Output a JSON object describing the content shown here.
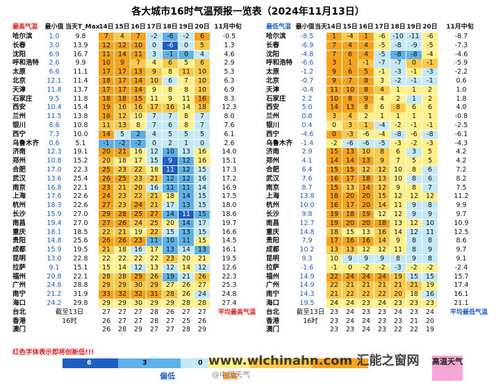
{
  "title": "各大城市16时气温预报一览表（2024年11月13日）",
  "tables": [
    {
      "header": [
        "最高气温",
        "最小值",
        "当天T_Max",
        "14日",
        "15日",
        "16日",
        "17日",
        "18日",
        "19日",
        "20日",
        "11月中旬"
      ],
      "rows": [
        {
          "city": "哈尔滨",
          "min": "1.0",
          "tmax": "9.8",
          "days": [
            7,
            4,
            7,
            -2,
            -6,
            -2,
            6
          ],
          "mid": "-0.5"
        },
        {
          "city": "长春",
          "min": "3.0",
          "tmax": "13.9",
          "days": [
            12,
            12,
            10,
            0,
            -6,
            0,
            5
          ],
          "mid": "1.3"
        },
        {
          "city": "沈阳",
          "min": "6.9",
          "tmax": "16.7",
          "days": [
            11,
            14,
            11,
            3,
            -1,
            0,
            4
          ],
          "mid": "4.6"
        },
        {
          "city": "呼和浩特",
          "min": "2.6",
          "tmax": "9.9",
          "days": [
            10,
            9,
            7,
            4,
            6,
            5,
            6
          ],
          "mid": "2.9"
        },
        {
          "city": "太原",
          "min": "6.6",
          "tmax": "11.1",
          "days": [
            17,
            17,
            13,
            9,
            8,
            11,
            10
          ],
          "mid": "5.3"
        },
        {
          "city": "北京",
          "min": "12.1",
          "tmax": "11.4",
          "days": [
            18,
            17,
            14,
            10,
            6,
            7,
            10
          ],
          "mid": "6.3"
        },
        {
          "city": "天津",
          "min": "11.8",
          "tmax": "13.7",
          "days": [
            17,
            17,
            14,
            9,
            8,
            8,
            10
          ],
          "mid": "6.9"
        },
        {
          "city": "石家庄",
          "min": "9.5",
          "tmax": "11.8",
          "days": [
            18,
            18,
            15,
            11,
            9,
            11,
            16
          ],
          "mid": "8.3"
        },
        {
          "city": "西安",
          "min": "10.4",
          "tmax": "15.4",
          "days": [
            19,
            16,
            16,
            17,
            16,
            14,
            18
          ],
          "mid": "12.3"
        },
        {
          "city": "兰州",
          "min": "11.5",
          "tmax": "13.8",
          "days": [
            16,
            12,
            10,
            7,
            7,
            8,
            7
          ],
          "mid": "8.0"
        },
        {
          "city": "银川",
          "min": "8.6",
          "tmax": "10.8",
          "days": [
            11,
            13,
            8,
            7,
            6,
            8,
            7
          ],
          "mid": "7.6"
        },
        {
          "city": "西宁",
          "min": "7.3",
          "tmax": "10.0",
          "days": [
            14,
            5,
            2,
            4,
            5,
            5,
            5
          ],
          "mid": "6.1"
        },
        {
          "city": "乌鲁木齐",
          "min": "0.6",
          "tmax": "5.1",
          "days": [
            -1,
            -2,
            -2,
            0,
            2,
            1,
            0
          ],
          "mid": "2.6"
        },
        {
          "city": "济南",
          "min": "12.3",
          "tmax": "19.1",
          "days": [
            20,
            21,
            16,
            12,
            10,
            13,
            16
          ],
          "mid": "14.0"
        },
        {
          "city": "郑州",
          "min": "10.8",
          "tmax": "15.2",
          "days": [
            20,
            18,
            17,
            15,
            9,
            12,
            16
          ],
          "mid": "15.1"
        },
        {
          "city": "合肥",
          "min": "17.0",
          "tmax": "22.3",
          "days": [
            25,
            23,
            22,
            18,
            11,
            12,
            15
          ],
          "mid": "17.3"
        },
        {
          "city": "武汉",
          "min": "13.6",
          "tmax": "25.4",
          "days": [
            26,
            25,
            23,
            21,
            12,
            12,
            16
          ],
          "mid": "17.2"
        },
        {
          "city": "南京",
          "min": "16.8",
          "tmax": "22.1",
          "days": [
            23,
            21,
            20,
            16,
            11,
            11,
            14
          ],
          "mid": "16.9"
        },
        {
          "city": "上海",
          "min": "17.6",
          "tmax": "22.6",
          "days": [
            24,
            23,
            22,
            21,
            18,
            14,
            15
          ],
          "mid": "17.5"
        },
        {
          "city": "杭州",
          "min": "18.3",
          "tmax": "22.6",
          "days": [
            27,
            23,
            24,
            21,
            17,
            13,
            15
          ],
          "mid": "18.0"
        },
        {
          "city": "长沙",
          "min": "15.9",
          "tmax": "27.0",
          "days": [
            29,
            28,
            25,
            27,
            14,
            11,
            15
          ],
          "mid": "18.6"
        },
        {
          "city": "南昌",
          "min": "19.4",
          "tmax": "27.0",
          "days": [
            27,
            26,
            24,
            25,
            20,
            14,
            17
          ],
          "mid": "19.7"
        },
        {
          "city": "重庆",
          "min": "18.1",
          "tmax": "18.5",
          "days": [
            22,
            21,
            19,
            22,
            15,
            13,
            15
          ],
          "mid": "16.6"
        },
        {
          "city": "贵阳",
          "min": "14.8",
          "tmax": "25.6",
          "days": [
            26,
            26,
            23,
            11,
            10,
            11,
            15
          ],
          "mid": "14.5"
        },
        {
          "city": "成都",
          "min": "15.9",
          "tmax": "19.5",
          "days": [
            21,
            18,
            16,
            17,
            13,
            14,
            13
          ],
          "mid": "16.1"
        },
        {
          "city": "昆明",
          "min": "13.0",
          "tmax": "22.8",
          "days": [
            22,
            22,
            22,
            22,
            23,
            20,
            21
          ],
          "mid": "19.5"
        },
        {
          "city": "拉萨",
          "min": "9.1",
          "tmax": "15.1",
          "days": [
            15,
            14,
            12,
            13,
            12,
            14,
            12
          ],
          "mid": "12.6"
        },
        {
          "city": "福州",
          "min": "20.8",
          "tmax": "22.1",
          "days": [
            28,
            28,
            29,
            26,
            19,
            21,
            26
          ],
          "mid": "22.3"
        },
        {
          "city": "广州",
          "min": "24.8",
          "tmax": "28.8",
          "days": [
            29,
            29,
            30,
            29,
            27,
            26,
            27
          ],
          "mid": "25.3"
        },
        {
          "city": "南宁",
          "min": "21.2",
          "tmax": "31.9",
          "days": [
            33,
            32,
            32,
            31,
            28,
            26,
            24
          ],
          "mid": "24.8"
        },
        {
          "city": "海口",
          "min": "24.2",
          "tmax": "29.8",
          "days": [
            29,
            29,
            30,
            29,
            29,
            28,
            28
          ],
          "mid": "27.4"
        },
        {
          "city": "台北",
          "note": "截至13日",
          "days": [
            27,
            27,
            27,
            28,
            26,
            27,
            27
          ],
          "mid": "平均最高气温"
        },
        {
          "city": "香港",
          "note": "16时",
          "days": [
            26,
            27,
            27,
            28,
            27,
            25,
            26
          ]
        },
        {
          "city": "澳门",
          "days": [
            26,
            28,
            29,
            27,
            27,
            28,
            29
          ]
        }
      ]
    },
    {
      "header": [
        "最低气温",
        "最小值",
        "当天",
        "14日",
        "15日",
        "16日",
        "17日",
        "18日",
        "19日",
        "20日",
        "11月中旬"
      ],
      "rows": [
        {
          "city": "哈尔滨",
          "min": "-8.5",
          "days": [
            1,
            -4,
            1,
            -6,
            -10,
            -11,
            -6
          ],
          "mid": "-8.7"
        },
        {
          "city": "长春",
          "min": "-6.9",
          "days": [
            7,
            4,
            4,
            -5,
            -8,
            -9,
            -5
          ],
          "mid": "-7.3"
        },
        {
          "city": "沈阳",
          "min": "-4.8",
          "days": [
            7,
            6,
            4,
            -5,
            -8,
            -8,
            -4
          ],
          "mid": "-4.6"
        },
        {
          "city": "呼和浩特",
          "min": "-6.6",
          "days": [
            3,
            1,
            -1,
            -7,
            -7,
            0,
            -1
          ],
          "mid": "-5.9"
        },
        {
          "city": "太原",
          "min": "-1.2",
          "days": [
            9,
            6,
            5,
            -1,
            -3,
            -1,
            -3
          ],
          "mid": "-2.2"
        },
        {
          "city": "北京",
          "min": "-0.7",
          "days": [
            9,
            7,
            8,
            3,
            -2,
            -1,
            -1
          ],
          "mid": "0.6"
        },
        {
          "city": "天津",
          "min": "-0.4",
          "days": [
            11,
            10,
            8,
            4,
            1,
            1,
            2
          ],
          "mid": "1.0"
        },
        {
          "city": "石家庄",
          "min": "2.2",
          "days": [
            10,
            8,
            9,
            4,
            2,
            1,
            2
          ],
          "mid": "1.8"
        },
        {
          "city": "西安",
          "min": "5.0",
          "days": [
            14,
            13,
            8,
            6,
            8,
            6,
            6
          ],
          "mid": "4.0"
        },
        {
          "city": "兰州",
          "min": "0.8",
          "days": [
            3,
            4,
            2,
            1,
            1,
            1,
            1
          ],
          "mid": "-0.8"
        },
        {
          "city": "银川",
          "min": "0.4",
          "days": [
            0,
            3,
            1,
            -4,
            -2,
            -1,
            -1
          ],
          "mid": "-2.5"
        },
        {
          "city": "西宁",
          "min": "-4.6",
          "days": [
            0,
            -3,
            -6,
            -4,
            -8,
            -6,
            -8
          ],
          "mid": "-6.1"
        },
        {
          "city": "乌鲁木齐",
          "min": "-1.4",
          "days": [
            -2,
            -6,
            -6,
            -5,
            -3,
            -2,
            -3
          ],
          "mid": "-4.3"
        },
        {
          "city": "济南",
          "min": "2.9",
          "days": [
            15,
            13,
            10,
            8,
            6,
            3,
            5
          ],
          "mid": "4.2"
        },
        {
          "city": "郑州",
          "min": "4.1",
          "days": [
            14,
            14,
            13,
            9,
            7,
            5,
            5
          ],
          "mid": "4.2"
        },
        {
          "city": "合肥",
          "min": "6.4",
          "days": [
            15,
            15,
            12,
            12,
            10,
            8,
            6
          ],
          "mid": "7.2"
        },
        {
          "city": "武汉",
          "min": "7.6",
          "days": [
            16,
            17,
            18,
            13,
            10,
            8,
            6
          ],
          "mid": "8.2"
        },
        {
          "city": "南京",
          "min": "8.7",
          "days": [
            15,
            13,
            14,
            12,
            9,
            8,
            7
          ],
          "mid": "7.5"
        },
        {
          "city": "上海",
          "min": "13.8",
          "days": [
            18,
            20,
            20,
            15,
            12,
            12,
            12
          ],
          "mid": "11.2"
        },
        {
          "city": "杭州",
          "min": "10.0",
          "days": [
            16,
            17,
            20,
            14,
            11,
            9,
            8
          ],
          "mid": "9.9"
        },
        {
          "city": "长沙",
          "min": "9.8",
          "days": [
            19,
            18,
            19,
            12,
            12,
            9,
            9
          ],
          "mid": "9.7"
        },
        {
          "city": "南昌",
          "min": "12.7",
          "days": [
            19,
            20,
            20,
            18,
            13,
            12,
            10
          ],
          "mid": "10.9"
        },
        {
          "city": "重庆",
          "min": "14.8",
          "days": [
            18,
            15,
            13,
            16,
            14,
            12,
            11
          ],
          "mid": "12.5"
        },
        {
          "city": "贵阳",
          "min": "7.9",
          "days": [
            17,
            16,
            16,
            14,
            9,
            8,
            8
          ],
          "mid": "8.6"
        },
        {
          "city": "成都",
          "min": "10.2",
          "days": [
            13,
            13,
            12,
            12,
            11,
            8,
            9
          ],
          "mid": "9.7"
        },
        {
          "city": "昆明",
          "min": "9.3",
          "days": [
            10,
            9,
            9,
            9,
            8,
            9,
            8
          ],
          "mid": "9.1"
        },
        {
          "city": "拉萨",
          "min": "-1.6",
          "days": [
            -1,
            0,
            -2,
            -2,
            -3,
            -2,
            -2
          ],
          "mid": "-2.4"
        },
        {
          "city": "福州",
          "min": "14.9",
          "days": [
            22,
            24,
            24,
            24,
            19,
            15,
            15
          ],
          "mid": "15.7"
        },
        {
          "city": "广州",
          "min": "14.9",
          "days": [
            22,
            21,
            21,
            21,
            21,
            21,
            19
          ],
          "mid": "17.4"
        },
        {
          "city": "南宁",
          "min": "14.3",
          "days": [
            21,
            22,
            22,
            22,
            20,
            18,
            16
          ],
          "mid": "16.1"
        },
        {
          "city": "海口",
          "min": "19.5",
          "days": [
            24,
            24,
            23,
            24,
            23,
            23,
            23
          ],
          "mid": "21.1"
        },
        {
          "city": "台北",
          "note": "截至13日",
          "days": [
            23,
            24,
            23,
            23,
            24,
            23,
            24
          ],
          "mid": "平均最低气温"
        },
        {
          "city": "香港",
          "note": "16时",
          "days": [
            23,
            24,
            24,
            23,
            23,
            21,
            20
          ]
        },
        {
          "city": "澳门",
          "days": [
            23,
            23,
            24,
            23,
            22,
            22,
            19
          ]
        }
      ]
    }
  ],
  "footer": {
    "note": "红色字体表示即将创新低!!!",
    "scale": [
      "6",
      "3",
      "0"
    ],
    "low": "偏低",
    "high": "偏高",
    "hot": "高温天气",
    "watermark": "www.wlchinahn.com 汇能之窗网",
    "source": "@中国天气"
  }
}
